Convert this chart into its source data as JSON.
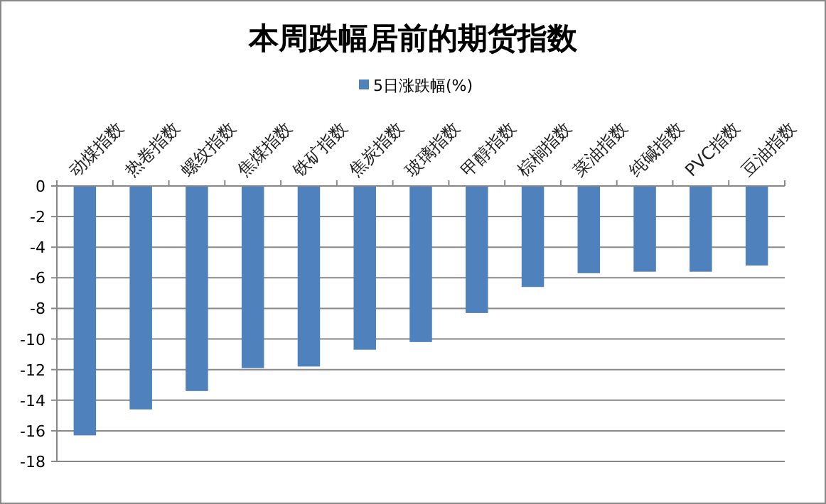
{
  "chart_data": {
    "type": "bar",
    "title": "本周跌幅居前的期货指数",
    "categories": [
      "动煤指数",
      "热卷指数",
      "螺纹指数",
      "焦煤指数",
      "铁矿指数",
      "焦炭指数",
      "玻璃指数",
      "甲醇指数",
      "棕榈指数",
      "菜油指数",
      "纯碱指数",
      "PVC指数",
      "豆油指数"
    ],
    "series": [
      {
        "name": "5日涨跌幅(%)",
        "color": "#4f81bd",
        "values": [
          -16.3,
          -14.6,
          -13.4,
          -11.9,
          -11.8,
          -10.7,
          -10.2,
          -8.3,
          -6.6,
          -5.7,
          -5.6,
          -5.6,
          -5.2
        ]
      }
    ],
    "ylim": [
      -18,
      0
    ],
    "yticks": [
      -18,
      -16,
      -14,
      -12,
      -10,
      -8,
      -6,
      -4,
      -2,
      0
    ],
    "grid": "y",
    "legend": "top"
  }
}
